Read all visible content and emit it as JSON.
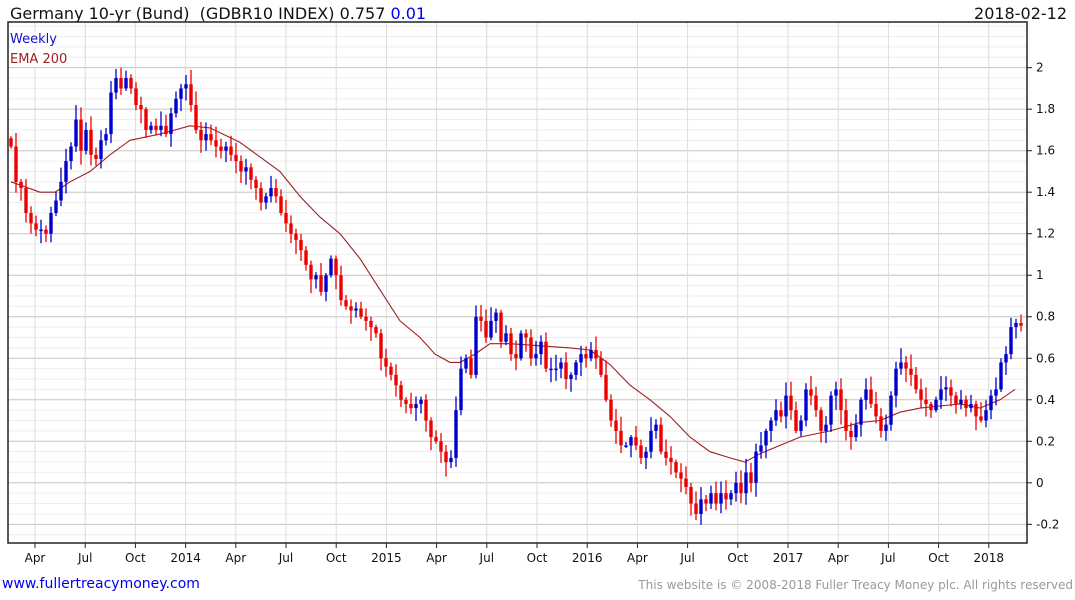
{
  "header": {
    "title": "Germany 10-yr (Bund)  (GDBR10 INDEX) 0.757",
    "change": "0.01",
    "date": "2018-02-12"
  },
  "legend": {
    "weekly": "Weekly",
    "ema": "EMA 200"
  },
  "footer": {
    "link": "www.fullertreacymoney.com",
    "copyright": "This website is © 2008-2018 Fuller Treacy Money plc. All rights reserved"
  },
  "colors": {
    "up": "#0000cc",
    "down": "#ee0000",
    "ema": "#a02020",
    "grid": "#d8d8d8"
  },
  "chart_data": {
    "type": "candlestick",
    "title": "Germany 10-yr (Bund) (GDBR10 INDEX)",
    "ylim": [
      -0.29,
      2.22
    ],
    "yticks": [
      -0.2,
      0,
      0.2,
      0.4,
      0.6,
      0.8,
      1,
      1.2,
      1.4,
      1.6,
      1.8,
      2
    ],
    "xtick_labels": [
      "Apr",
      "Jul",
      "Oct",
      "2014",
      "Apr",
      "Jul",
      "Oct",
      "2015",
      "Apr",
      "Jul",
      "Oct",
      "2016",
      "Apr",
      "Jul",
      "Oct",
      "2017",
      "Apr",
      "Jul",
      "Oct",
      "2018"
    ],
    "first_tick_period": 4.8,
    "periods_per_quarter": 10.04,
    "grid": true,
    "close": [
      1.62,
      1.45,
      1.42,
      1.3,
      1.25,
      1.22,
      1.22,
      1.2,
      1.3,
      1.36,
      1.45,
      1.55,
      1.62,
      1.75,
      1.6,
      1.7,
      1.58,
      1.56,
      1.65,
      1.68,
      1.88,
      1.95,
      1.9,
      1.95,
      1.9,
      1.82,
      1.8,
      1.7,
      1.72,
      1.7,
      1.72,
      1.68,
      1.78,
      1.85,
      1.9,
      1.92,
      1.82,
      1.7,
      1.65,
      1.68,
      1.65,
      1.62,
      1.6,
      1.62,
      1.58,
      1.55,
      1.5,
      1.52,
      1.46,
      1.42,
      1.35,
      1.38,
      1.42,
      1.38,
      1.3,
      1.25,
      1.2,
      1.17,
      1.12,
      1.05,
      0.98,
      1.0,
      0.92,
      1.0,
      1.08,
      1.0,
      0.88,
      0.85,
      0.83,
      0.84,
      0.8,
      0.78,
      0.75,
      0.72,
      0.6,
      0.56,
      0.52,
      0.47,
      0.4,
      0.38,
      0.36,
      0.38,
      0.4,
      0.3,
      0.22,
      0.2,
      0.15,
      0.1,
      0.12,
      0.35,
      0.55,
      0.6,
      0.52,
      0.8,
      0.78,
      0.7,
      0.78,
      0.82,
      0.68,
      0.72,
      0.62,
      0.6,
      0.72,
      0.7,
      0.6,
      0.62,
      0.68,
      0.55,
      0.55,
      0.55,
      0.58,
      0.5,
      0.52,
      0.58,
      0.62,
      0.6,
      0.64,
      0.6,
      0.52,
      0.4,
      0.3,
      0.25,
      0.18,
      0.18,
      0.22,
      0.18,
      0.12,
      0.15,
      0.25,
      0.28,
      0.15,
      0.12,
      0.1,
      0.05,
      0.02,
      -0.02,
      -0.1,
      -0.15,
      -0.08,
      -0.1,
      -0.05,
      -0.1,
      -0.05,
      -0.08,
      -0.05,
      0.0,
      -0.05,
      0.05,
      0.0,
      0.15,
      0.18,
      0.25,
      0.3,
      0.35,
      0.32,
      0.42,
      0.35,
      0.25,
      0.3,
      0.45,
      0.42,
      0.35,
      0.25,
      0.28,
      0.42,
      0.45,
      0.35,
      0.25,
      0.22,
      0.28,
      0.4,
      0.45,
      0.38,
      0.32,
      0.25,
      0.28,
      0.42,
      0.55,
      0.58,
      0.55,
      0.52,
      0.45,
      0.4,
      0.38,
      0.35,
      0.4,
      0.45,
      0.46,
      0.42,
      0.38,
      0.4,
      0.36,
      0.38,
      0.32,
      0.3,
      0.35,
      0.42,
      0.45,
      0.58,
      0.62,
      0.75,
      0.77,
      0.757
    ],
    "ema200_points": [
      [
        0,
        1.45
      ],
      [
        5.8,
        1.4
      ],
      [
        8.8,
        1.4
      ],
      [
        11.8,
        1.45
      ],
      [
        15.8,
        1.5
      ],
      [
        19.8,
        1.58
      ],
      [
        23.8,
        1.65
      ],
      [
        29.8,
        1.68
      ],
      [
        35.8,
        1.72
      ],
      [
        39.8,
        1.71
      ],
      [
        45.8,
        1.64
      ],
      [
        49.8,
        1.57
      ],
      [
        53.8,
        1.5
      ],
      [
        57.8,
        1.38
      ],
      [
        61.8,
        1.28
      ],
      [
        65.8,
        1.2
      ],
      [
        69.8,
        1.08
      ],
      [
        73.8,
        0.93
      ],
      [
        77.8,
        0.78
      ],
      [
        81.8,
        0.7
      ],
      [
        84.8,
        0.62
      ],
      [
        87.8,
        0.58
      ],
      [
        89.8,
        0.58
      ],
      [
        92.8,
        0.62
      ],
      [
        95.8,
        0.67
      ],
      [
        99.8,
        0.67
      ],
      [
        105.8,
        0.66
      ],
      [
        111.8,
        0.65
      ],
      [
        115.8,
        0.64
      ],
      [
        119.8,
        0.57
      ],
      [
        123.8,
        0.47
      ],
      [
        127.8,
        0.4
      ],
      [
        131.8,
        0.32
      ],
      [
        135.8,
        0.22
      ],
      [
        139.8,
        0.15
      ],
      [
        143.8,
        0.12
      ],
      [
        146.8,
        0.1
      ],
      [
        149.8,
        0.14
      ],
      [
        153.8,
        0.18
      ],
      [
        157.8,
        0.22
      ],
      [
        163.8,
        0.25
      ],
      [
        169.8,
        0.29
      ],
      [
        173.8,
        0.3
      ],
      [
        177.8,
        0.34
      ],
      [
        181.8,
        0.36
      ],
      [
        185.8,
        0.37
      ],
      [
        189.8,
        0.38
      ],
      [
        193.8,
        0.36
      ],
      [
        197.8,
        0.4
      ],
      [
        200.8,
        0.45
      ]
    ]
  }
}
